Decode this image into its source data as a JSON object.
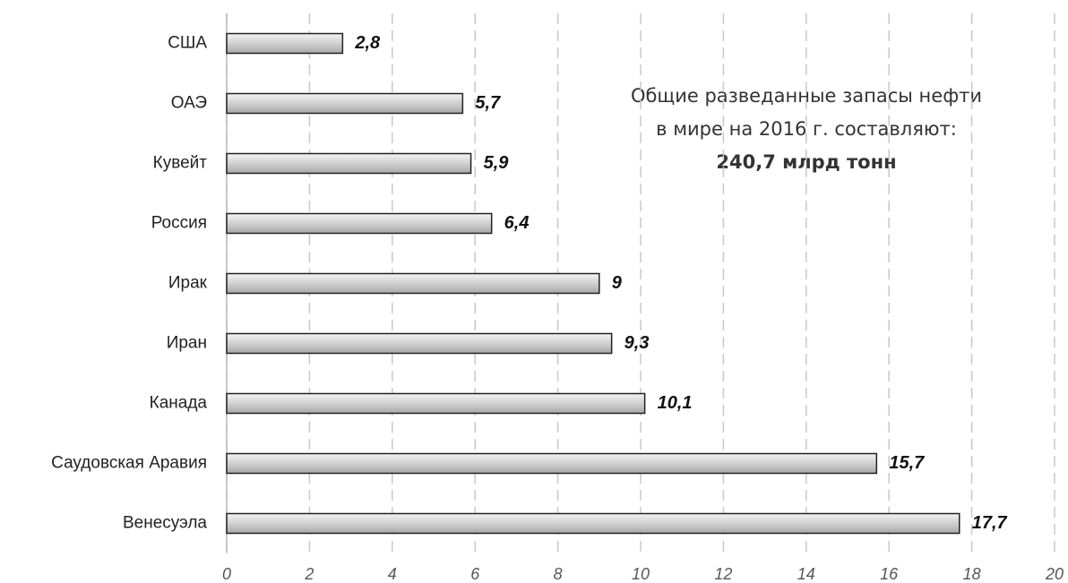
{
  "chart_data": {
    "type": "bar",
    "orientation": "horizontal",
    "categories": [
      "США",
      "ОАЭ",
      "Кувейт",
      "Россия",
      "Ирак",
      "Иран",
      "Канада",
      "Саудовская Аравия",
      "Венесуэла"
    ],
    "values": [
      2.8,
      5.7,
      5.9,
      6.4,
      9,
      9.3,
      10.1,
      15.7,
      17.7
    ],
    "value_labels": [
      "2,8",
      "5,7",
      "5,9",
      "6,4",
      "9",
      "9,3",
      "10,1",
      "15,7",
      "17,7"
    ],
    "color": "#c8c8c8",
    "xlim": [
      0,
      20
    ],
    "xticks": [
      0,
      2,
      4,
      6,
      8,
      10,
      12,
      14,
      16,
      18,
      20
    ],
    "grid": true,
    "annotation": [
      "Общие разведанные запасы нефти",
      "в мире на 2016 г. составляют:",
      "240,7 млрд тонн"
    ]
  }
}
